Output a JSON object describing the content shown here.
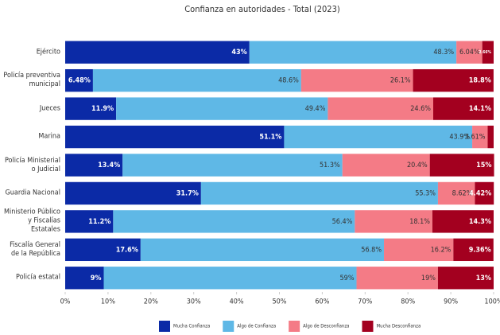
{
  "chart_data": {
    "type": "stacked-bar-horizontal",
    "title": "Confianza en autoridades - Total (2023)",
    "categories": [
      "Ejército",
      "Policía preventiva municipal",
      "Jueces",
      "Marina",
      "Policía Ministerial o Judicial",
      "Guardia Nacional",
      "Ministerio Público y Fiscalías Estatales",
      "Fiscalía General de la República",
      "Policía estatal"
    ],
    "series": [
      {
        "name": "Mucha Confianza",
        "color": "#0b2aa6",
        "values": [
          43,
          6.48,
          11.9,
          51.1,
          13.4,
          31.7,
          11.2,
          17.6,
          9
        ],
        "value_labels": [
          "43%",
          "6.48%",
          "11.9%",
          "51.1%",
          "13.4%",
          "31.7%",
          "11.2%",
          "17.6%",
          "9%"
        ]
      },
      {
        "name": "Algo de Confianza",
        "color": "#5fb8e6",
        "values": [
          48.3,
          48.6,
          49.4,
          43.9,
          51.3,
          55.3,
          56.4,
          56.8,
          59
        ],
        "value_labels": [
          "48.3%",
          "48.6%",
          "49.4%",
          "43.9%",
          "51.3%",
          "55.3%",
          "56.4%",
          "56.8%",
          "59%"
        ]
      },
      {
        "name": "Algo de Desconfianza",
        "color": "#f47b86",
        "values": [
          6.04,
          26.1,
          24.6,
          3.61,
          20.4,
          8.62,
          18.1,
          16.2,
          19
        ],
        "value_labels": [
          "6.04%",
          "26.1%",
          "24.6%",
          "3.61%",
          "20.4%",
          "8.62%",
          "18.1%",
          "16.2%",
          "19%"
        ]
      },
      {
        "name": "Mucha Desconfianza",
        "color": "#a3001f",
        "values": [
          2.66,
          18.8,
          14.1,
          1.39,
          15,
          4.42,
          14.3,
          9.36,
          13
        ],
        "value_labels": [
          "2.66%",
          "18.8%",
          "14.1%",
          null,
          "15%",
          "4.42%",
          "14.3%",
          "9.36%",
          "13%"
        ]
      }
    ],
    "xlim": [
      0,
      100
    ],
    "xticks": [
      {
        "value": 0,
        "label": "0%"
      },
      {
        "value": 10,
        "label": "10%"
      },
      {
        "value": 20,
        "label": "20%"
      },
      {
        "value": 30,
        "label": "30%"
      },
      {
        "value": 40,
        "label": "40%"
      },
      {
        "value": 50,
        "label": "50%"
      },
      {
        "value": 60,
        "label": "60%"
      },
      {
        "value": 70,
        "label": "70%"
      },
      {
        "value": 80,
        "label": "80%"
      },
      {
        "value": 90,
        "label": "90%"
      },
      {
        "value": 100,
        "label": "100%"
      }
    ],
    "legend": "bottom"
  }
}
